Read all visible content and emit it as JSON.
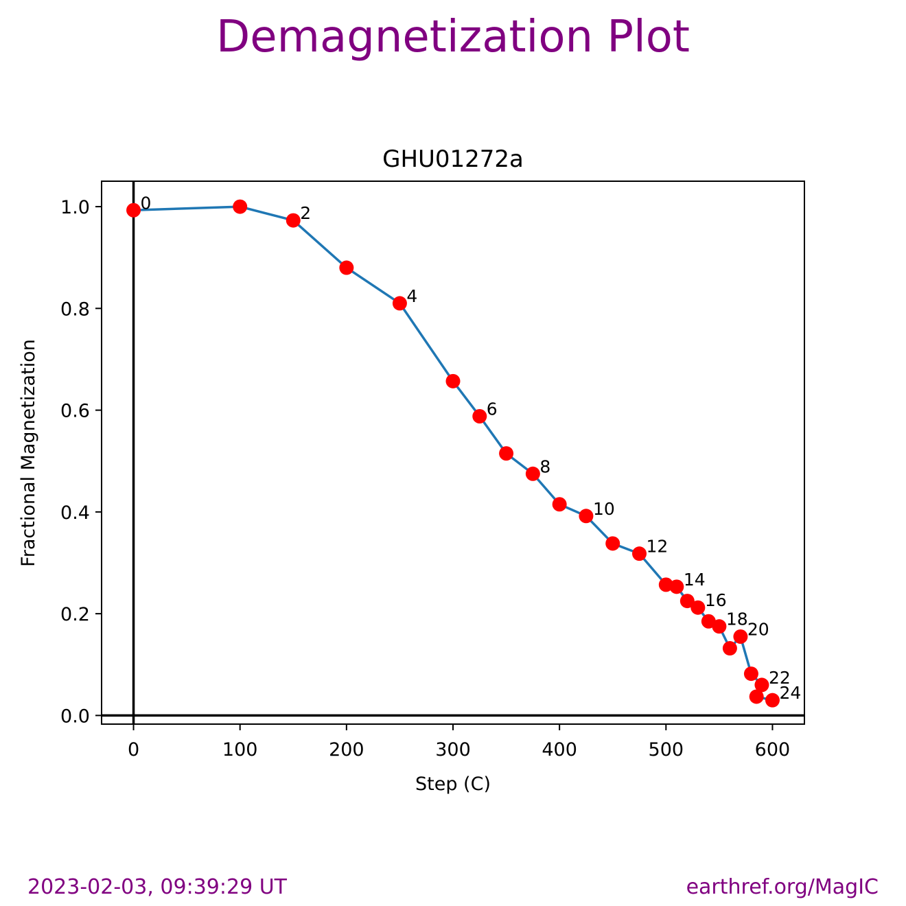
{
  "figure": {
    "title": "Demagnetization Plot",
    "title_color": "#800080"
  },
  "footer": {
    "timestamp": "2023-02-03, 09:39:29 UT",
    "source": "earthref.org/MagIC",
    "color": "#800080"
  },
  "chart_data": {
    "type": "line",
    "title": "GHU01272a",
    "xlabel": "Step (C)",
    "ylabel": "Fractional Magnetization",
    "xlim": [
      -30,
      630
    ],
    "ylim": [
      -0.017,
      1.05
    ],
    "xticks": [
      0,
      100,
      200,
      300,
      400,
      500,
      600
    ],
    "yticks": [
      0.0,
      0.2,
      0.4,
      0.6,
      0.8,
      1.0
    ],
    "xtick_labels": [
      "0",
      "100",
      "200",
      "300",
      "400",
      "500",
      "600"
    ],
    "ytick_labels": [
      "0.0",
      "0.2",
      "0.4",
      "0.6",
      "0.8",
      "1.0"
    ],
    "grid": false,
    "line_color": "#1f77b4",
    "marker_color": "#ff0000",
    "reference_lines": {
      "x": 0,
      "y": 0,
      "color": "#000000"
    },
    "series": [
      {
        "x": [
          0,
          100,
          150,
          200,
          250,
          300,
          325,
          350,
          375,
          400,
          425,
          450,
          475,
          500,
          510,
          520,
          530,
          540,
          550,
          560,
          570,
          580,
          590,
          585,
          600
        ],
        "y": [
          0.993,
          1.0,
          0.973,
          0.88,
          0.81,
          0.657,
          0.588,
          0.515,
          0.475,
          0.415,
          0.392,
          0.338,
          0.318,
          0.257,
          0.253,
          0.225,
          0.212,
          0.185,
          0.175,
          0.132,
          0.155,
          0.082,
          0.06,
          0.037,
          0.03
        ]
      }
    ],
    "point_labels": [
      {
        "index": 0,
        "text": "0"
      },
      {
        "index": 2,
        "text": "2"
      },
      {
        "index": 4,
        "text": "4"
      },
      {
        "index": 6,
        "text": "6"
      },
      {
        "index": 8,
        "text": "8"
      },
      {
        "index": 10,
        "text": "10"
      },
      {
        "index": 12,
        "text": "12"
      },
      {
        "index": 14,
        "text": "14"
      },
      {
        "index": 16,
        "text": "16"
      },
      {
        "index": 18,
        "text": "18"
      },
      {
        "index": 20,
        "text": "20"
      },
      {
        "index": 22,
        "text": "22"
      },
      {
        "index": 24,
        "text": "24"
      }
    ]
  }
}
